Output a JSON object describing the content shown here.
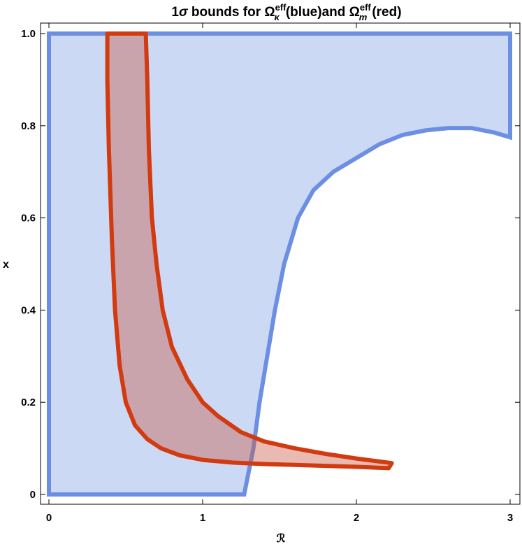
{
  "chart_data": {
    "type": "area",
    "title": {
      "prefix": "1",
      "sigma": "σ",
      "mid": " bounds for ",
      "omega1": "Ω",
      "sup1": "eff",
      "sub1": "κ",
      "part1": "(blue)and ",
      "omega2": "Ω",
      "sup2": "eff",
      "sub2": "m",
      "part2": "(red)"
    },
    "xlabel": "ℛ",
    "ylabel": "x",
    "xlim": [
      0,
      3
    ],
    "ylim": [
      0,
      1
    ],
    "xticks": [
      {
        "value": 0,
        "label": "0"
      },
      {
        "value": 1,
        "label": "1"
      },
      {
        "value": 2,
        "label": "2"
      },
      {
        "value": 3,
        "label": "3"
      }
    ],
    "yticks": [
      {
        "value": 0,
        "label": "0"
      },
      {
        "value": 0.2,
        "label": "0.2"
      },
      {
        "value": 0.4,
        "label": "0.4"
      },
      {
        "value": 0.6,
        "label": "0.6"
      },
      {
        "value": 0.8,
        "label": "0.8"
      },
      {
        "value": 1.0,
        "label": "1.0"
      }
    ],
    "grid": false,
    "series": [
      {
        "color": "#6d8fe3",
        "fill": "#ccd9f4",
        "boundary": [
          [
            0,
            0
          ],
          [
            1.27,
            0
          ],
          [
            1.3,
            0.05
          ],
          [
            1.33,
            0.1
          ],
          [
            1.37,
            0.2
          ],
          [
            1.42,
            0.3
          ],
          [
            1.47,
            0.4
          ],
          [
            1.53,
            0.5
          ],
          [
            1.62,
            0.6
          ],
          [
            1.72,
            0.66
          ],
          [
            1.85,
            0.7
          ],
          [
            2.0,
            0.73
          ],
          [
            2.15,
            0.76
          ],
          [
            2.3,
            0.78
          ],
          [
            2.45,
            0.79
          ],
          [
            2.6,
            0.795
          ],
          [
            2.75,
            0.795
          ],
          [
            2.9,
            0.785
          ],
          [
            3.0,
            0.775
          ],
          [
            3.0,
            1.0
          ],
          [
            0,
            1.0
          ]
        ]
      },
      {
        "color": "#d23a10",
        "fill": "#c75b48",
        "boundary": [
          [
            0.38,
            1.0
          ],
          [
            0.63,
            1.0
          ],
          [
            0.64,
            0.9
          ],
          [
            0.65,
            0.75
          ],
          [
            0.67,
            0.6
          ],
          [
            0.7,
            0.5
          ],
          [
            0.74,
            0.4
          ],
          [
            0.8,
            0.32
          ],
          [
            0.9,
            0.25
          ],
          [
            1.0,
            0.2
          ],
          [
            1.1,
            0.17
          ],
          [
            1.25,
            0.135
          ],
          [
            1.4,
            0.115
          ],
          [
            1.6,
            0.1
          ],
          [
            1.8,
            0.088
          ],
          [
            2.0,
            0.078
          ],
          [
            2.23,
            0.068
          ],
          [
            2.21,
            0.057
          ],
          [
            2.0,
            0.06
          ],
          [
            1.8,
            0.062
          ],
          [
            1.6,
            0.064
          ],
          [
            1.4,
            0.066
          ],
          [
            1.2,
            0.069
          ],
          [
            1.0,
            0.075
          ],
          [
            0.85,
            0.085
          ],
          [
            0.73,
            0.1
          ],
          [
            0.64,
            0.12
          ],
          [
            0.56,
            0.15
          ],
          [
            0.5,
            0.2
          ],
          [
            0.46,
            0.28
          ],
          [
            0.43,
            0.4
          ],
          [
            0.41,
            0.55
          ],
          [
            0.39,
            0.75
          ],
          [
            0.38,
            0.9
          ]
        ]
      }
    ]
  }
}
